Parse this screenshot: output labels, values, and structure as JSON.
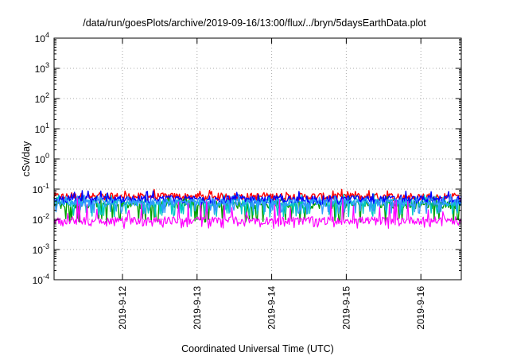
{
  "chart_data": {
    "type": "line",
    "title": "/data/run/goesPlots/archive/2019-09-16/13:00/flux/../bryn/5daysEarthData.plot",
    "xlabel": "Coordinated Universal Time (UTC)",
    "ylabel": "cSv/day",
    "yscale": "log",
    "ylim": [
      0.0001,
      10000
    ],
    "y_ticks": [
      {
        "base": "10",
        "exp": "-4"
      },
      {
        "base": "10",
        "exp": "-3"
      },
      {
        "base": "10",
        "exp": "-2"
      },
      {
        "base": "10",
        "exp": "-1"
      },
      {
        "base": "10",
        "exp": "0"
      },
      {
        "base": "10",
        "exp": "1"
      },
      {
        "base": "10",
        "exp": "2"
      },
      {
        "base": "10",
        "exp": "3"
      },
      {
        "base": "10",
        "exp": "4"
      }
    ],
    "xlim": [
      "2019-09-11T02:00",
      "2019-09-16T13:00"
    ],
    "x_ticks": [
      "2019-9-12",
      "2019-9-13",
      "2019-9-14",
      "2019-9-15",
      "2019-9-16"
    ],
    "x_tick_dates": [
      "2019-09-12T00:00",
      "2019-09-13T00:00",
      "2019-09-14T00:00",
      "2019-09-15T00:00",
      "2019-09-16T00:00"
    ],
    "grid": true,
    "series": [
      {
        "color": "#ff0000",
        "typical": 0.055,
        "low": 0.04,
        "high": 0.1
      },
      {
        "color": "#0000ff",
        "typical": 0.045,
        "low": 0.03,
        "high": 0.09
      },
      {
        "color": "#00c8c8",
        "typical": 0.035,
        "low": 0.012,
        "high": 0.07
      },
      {
        "color": "#00a000",
        "typical": 0.03,
        "low": 0.008,
        "high": 0.06
      },
      {
        "color": "#3399ff",
        "typical": 0.035,
        "low": 0.015,
        "high": 0.07
      },
      {
        "color": "#ff00ff",
        "typical": 0.009,
        "low": 0.005,
        "high": 0.05
      }
    ]
  }
}
